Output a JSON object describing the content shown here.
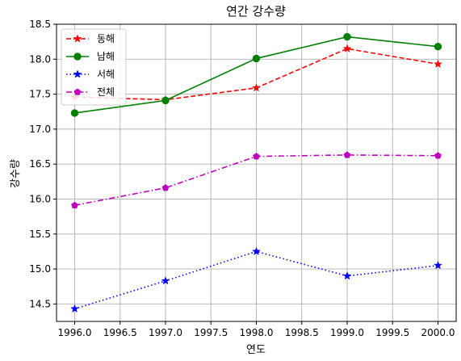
{
  "chart_data": {
    "type": "line",
    "title": "연간 강수량",
    "xlabel": "연도",
    "ylabel": "강수량",
    "x": [
      1996.0,
      1997.0,
      1998.0,
      1999.0,
      2000.0
    ],
    "xlim": [
      1995.8,
      2000.2
    ],
    "ylim": [
      14.25,
      18.5
    ],
    "xticks": [
      "1996.0",
      "1996.5",
      "1997.0",
      "1997.5",
      "1998.0",
      "1998.5",
      "1999.0",
      "1999.5",
      "2000.0"
    ],
    "yticks": [
      "14.5",
      "15.0",
      "15.5",
      "16.0",
      "16.5",
      "17.0",
      "17.5",
      "18.0",
      "18.5"
    ],
    "grid": true,
    "legend_position": "top-left",
    "series": [
      {
        "name": "동해",
        "values": [
          17.46,
          17.42,
          17.59,
          18.15,
          17.93
        ],
        "color": "#ff0000",
        "dash": "dashed",
        "marker": "star"
      },
      {
        "name": "남해",
        "values": [
          17.23,
          17.41,
          18.01,
          18.32,
          18.18
        ],
        "color": "#008000",
        "dash": "solid",
        "marker": "circle"
      },
      {
        "name": "서해",
        "values": [
          14.43,
          14.83,
          15.25,
          14.9,
          15.05
        ],
        "color": "#0000ff",
        "dash": "dotted",
        "marker": "star"
      },
      {
        "name": "전체",
        "values": [
          15.91,
          16.16,
          16.61,
          16.63,
          16.62
        ],
        "color": "#bf00bf",
        "dash": "dashdot",
        "marker": "pentagon"
      }
    ]
  }
}
